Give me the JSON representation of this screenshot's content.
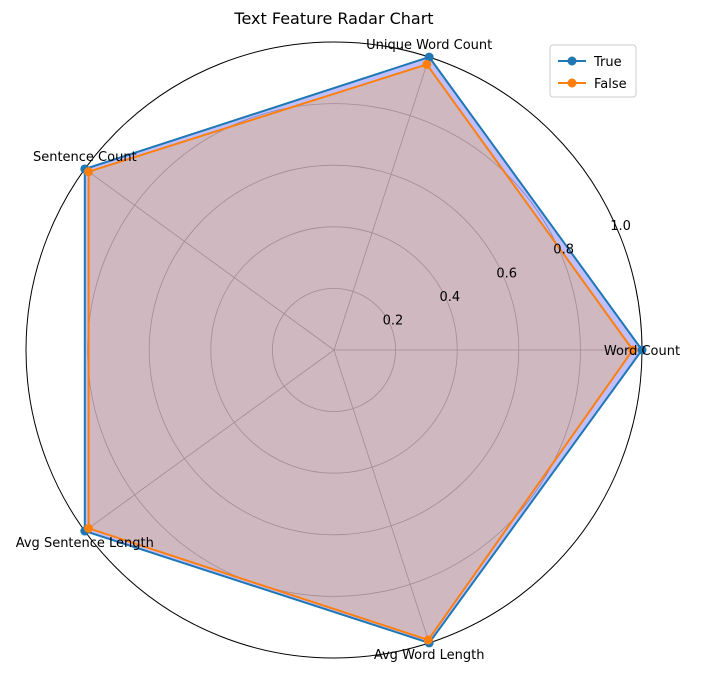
{
  "chart_data": {
    "type": "radar",
    "title": "Text Feature Radar Chart",
    "categories": [
      "Word Count",
      "Unique Word Count",
      "Sentence Count",
      "Avg Sentence Length",
      "Avg Word Length"
    ],
    "category_order_display": [
      "Word Count",
      "Unique Word Count",
      "Sentence Count",
      "Avg Word Length",
      "Avg Sentence Length"
    ],
    "rlim": [
      0,
      1.0
    ],
    "rticks": [
      "0.2",
      "0.4",
      "0.6",
      "0.8",
      "1.0"
    ],
    "grid": true,
    "legend": "top-right",
    "series": [
      {
        "name": "True",
        "color": "#1f77b4",
        "fill": "#0000ff",
        "values": [
          1.0,
          1.0,
          1.0,
          1.0,
          1.0
        ]
      },
      {
        "name": "False",
        "color": "#ff7f0e",
        "fill": "#ffa500",
        "values": [
          0.97,
          0.975,
          0.985,
          0.985,
          0.99
        ]
      }
    ]
  }
}
